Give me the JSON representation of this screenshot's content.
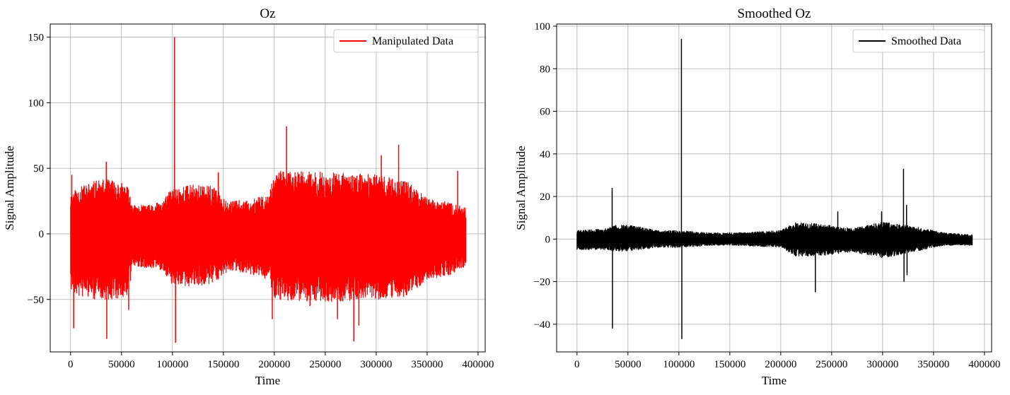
{
  "chart_data": [
    {
      "type": "line",
      "title": "Oz",
      "xlabel": "Time",
      "ylabel": "Signal Amplitude",
      "xlim": [
        -20000,
        407000
      ],
      "ylim": [
        -90,
        160
      ],
      "xticks": [
        0,
        50000,
        100000,
        150000,
        200000,
        250000,
        300000,
        350000,
        400000
      ],
      "xtick_labels": [
        "0",
        "50000",
        "100000",
        "150000",
        "200000",
        "250000",
        "300000",
        "350000",
        "400000"
      ],
      "yticks": [
        -50,
        0,
        50,
        100,
        150
      ],
      "ytick_labels": [
        "−50",
        "0",
        "50",
        "100",
        "150"
      ],
      "grid": true,
      "legend_position": "top-right",
      "series": [
        {
          "name": "Manipulated Data",
          "color": "#ff0000",
          "envelope": [
            {
              "x": 0,
              "high": 32,
              "low": -45
            },
            {
              "x": 20000,
              "high": 40,
              "low": -50
            },
            {
              "x": 40000,
              "high": 42,
              "low": -50
            },
            {
              "x": 55000,
              "high": 38,
              "low": -48
            },
            {
              "x": 62000,
              "high": 22,
              "low": -25
            },
            {
              "x": 80000,
              "high": 22,
              "low": -26
            },
            {
              "x": 90000,
              "high": 25,
              "low": -28
            },
            {
              "x": 100000,
              "high": 35,
              "low": -40
            },
            {
              "x": 120000,
              "high": 38,
              "low": -40
            },
            {
              "x": 140000,
              "high": 36,
              "low": -38
            },
            {
              "x": 155000,
              "high": 25,
              "low": -28
            },
            {
              "x": 175000,
              "high": 26,
              "low": -30
            },
            {
              "x": 195000,
              "high": 30,
              "low": -35
            },
            {
              "x": 200000,
              "high": 48,
              "low": -50
            },
            {
              "x": 250000,
              "high": 47,
              "low": -52
            },
            {
              "x": 300000,
              "high": 45,
              "low": -50
            },
            {
              "x": 330000,
              "high": 40,
              "low": -48
            },
            {
              "x": 350000,
              "high": 28,
              "low": -35
            },
            {
              "x": 370000,
              "high": 24,
              "low": -32
            },
            {
              "x": 388000,
              "high": 20,
              "low": -25
            }
          ],
          "spikes": [
            {
              "x": 1200,
              "y": 45
            },
            {
              "x": 3000,
              "y": -72
            },
            {
              "x": 35000,
              "y": 55
            },
            {
              "x": 35500,
              "y": -80
            },
            {
              "x": 57000,
              "y": -58
            },
            {
              "x": 102000,
              "y": 150
            },
            {
              "x": 103000,
              "y": -83
            },
            {
              "x": 145000,
              "y": 47
            },
            {
              "x": 198000,
              "y": -65
            },
            {
              "x": 212000,
              "y": 82
            },
            {
              "x": 235000,
              "y": -55
            },
            {
              "x": 262000,
              "y": -65
            },
            {
              "x": 278000,
              "y": -82
            },
            {
              "x": 283000,
              "y": -70
            },
            {
              "x": 305000,
              "y": 60
            },
            {
              "x": 322000,
              "y": 68
            },
            {
              "x": 380000,
              "y": 48
            }
          ]
        }
      ]
    },
    {
      "type": "line",
      "title": "Smoothed Oz",
      "xlabel": "Time",
      "ylabel": "Signal Amplitude",
      "xlim": [
        -20000,
        407000
      ],
      "ylim": [
        -53,
        101
      ],
      "xticks": [
        0,
        50000,
        100000,
        150000,
        200000,
        250000,
        300000,
        350000,
        400000
      ],
      "xtick_labels": [
        "0",
        "50000",
        "100000",
        "150000",
        "200000",
        "250000",
        "300000",
        "350000",
        "400000"
      ],
      "yticks": [
        -40,
        -20,
        0,
        20,
        40,
        60,
        80,
        100
      ],
      "ytick_labels": [
        "−40",
        "−20",
        "0",
        "20",
        "40",
        "60",
        "80",
        "100"
      ],
      "grid": true,
      "legend_position": "top-right",
      "series": [
        {
          "name": "Smoothed Data",
          "color": "#000000",
          "envelope": [
            {
              "x": 0,
              "high": 4,
              "low": -5
            },
            {
              "x": 30000,
              "high": 5,
              "low": -5
            },
            {
              "x": 40000,
              "high": 7,
              "low": -6
            },
            {
              "x": 60000,
              "high": 6,
              "low": -5
            },
            {
              "x": 80000,
              "high": 4,
              "low": -4
            },
            {
              "x": 100000,
              "high": 4,
              "low": -4
            },
            {
              "x": 130000,
              "high": 3,
              "low": -3
            },
            {
              "x": 160000,
              "high": 3,
              "low": -3
            },
            {
              "x": 200000,
              "high": 4,
              "low": -4
            },
            {
              "x": 215000,
              "high": 8,
              "low": -8
            },
            {
              "x": 240000,
              "high": 7,
              "low": -8
            },
            {
              "x": 270000,
              "high": 5,
              "low": -6
            },
            {
              "x": 300000,
              "high": 8,
              "low": -9
            },
            {
              "x": 330000,
              "high": 6,
              "low": -6
            },
            {
              "x": 360000,
              "high": 3,
              "low": -3
            },
            {
              "x": 388000,
              "high": 2,
              "low": -3
            }
          ],
          "spikes": [
            {
              "x": 34500,
              "y": 24
            },
            {
              "x": 34800,
              "y": -42
            },
            {
              "x": 102500,
              "y": 94
            },
            {
              "x": 102900,
              "y": -47
            },
            {
              "x": 234000,
              "y": -25
            },
            {
              "x": 256000,
              "y": 13
            },
            {
              "x": 299000,
              "y": 13
            },
            {
              "x": 320500,
              "y": 33
            },
            {
              "x": 321000,
              "y": -20
            },
            {
              "x": 323500,
              "y": 16
            },
            {
              "x": 324000,
              "y": -17
            }
          ]
        }
      ]
    }
  ]
}
